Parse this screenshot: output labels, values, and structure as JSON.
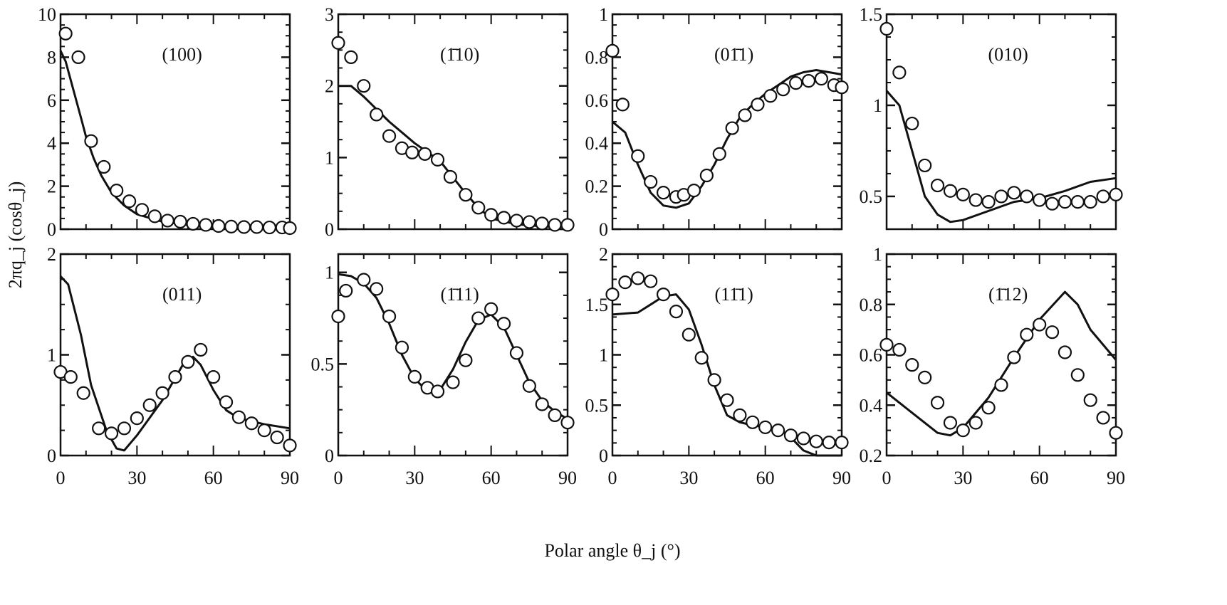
{
  "chart_data": {
    "type": "scatter",
    "ylabel": "2πq_j (cosθ_j)",
    "xlabel": "Polar angle θ_j (°)",
    "xlim": [
      0,
      90
    ],
    "xticks": [
      0,
      30,
      60,
      90
    ],
    "panels": [
      {
        "title": "(100)",
        "ylim": [
          0,
          10
        ],
        "yticks": [
          0,
          2,
          4,
          6,
          8,
          10
        ],
        "points": {
          "x": [
            2,
            7,
            12,
            17,
            22,
            27,
            32,
            37,
            42,
            47,
            52,
            57,
            62,
            67,
            72,
            77,
            82,
            87,
            90
          ],
          "y": [
            9.1,
            8.0,
            4.1,
            2.9,
            1.8,
            1.3,
            0.9,
            0.6,
            0.4,
            0.35,
            0.25,
            0.2,
            0.15,
            0.12,
            0.1,
            0.1,
            0.08,
            0.08,
            0.05
          ]
        },
        "curve": {
          "x": [
            0,
            2,
            5,
            8,
            10,
            13,
            16,
            20,
            25,
            30,
            40,
            50,
            60,
            70,
            80,
            90
          ],
          "y": [
            8.3,
            7.8,
            6.5,
            5.2,
            4.3,
            3.3,
            2.5,
            1.7,
            1.1,
            0.7,
            0.35,
            0.2,
            0.12,
            0.08,
            0.05,
            0.04
          ]
        }
      },
      {
        "title": "(1̄10)",
        "ylim": [
          0,
          3
        ],
        "yticks": [
          0,
          1,
          2,
          3
        ],
        "points": {
          "x": [
            0,
            5,
            10,
            15,
            20,
            25,
            29,
            34,
            39,
            44,
            50,
            55,
            60,
            65,
            70,
            75,
            80,
            85,
            90
          ],
          "y": [
            2.6,
            2.4,
            2.0,
            1.6,
            1.3,
            1.13,
            1.07,
            1.05,
            0.97,
            0.73,
            0.48,
            0.3,
            0.2,
            0.16,
            0.12,
            0.1,
            0.08,
            0.06,
            0.06
          ]
        },
        "curve": {
          "x": [
            0,
            5,
            10,
            20,
            30,
            40,
            50,
            55,
            60,
            70,
            80,
            90
          ],
          "y": [
            2.0,
            2.0,
            1.85,
            1.5,
            1.2,
            0.95,
            0.5,
            0.3,
            0.15,
            0.07,
            0.04,
            0.03
          ]
        }
      },
      {
        "title": "(01̄1)",
        "ylim": [
          0,
          1
        ],
        "yticks": [
          0,
          0.2,
          0.4,
          0.6,
          0.8,
          1
        ],
        "points": {
          "x": [
            0,
            4,
            10,
            15,
            20,
            25,
            28,
            32,
            37,
            42,
            47,
            52,
            57,
            62,
            67,
            72,
            77,
            82,
            87,
            90
          ],
          "y": [
            0.83,
            0.58,
            0.34,
            0.22,
            0.17,
            0.15,
            0.16,
            0.18,
            0.25,
            0.35,
            0.47,
            0.53,
            0.58,
            0.62,
            0.65,
            0.68,
            0.69,
            0.7,
            0.67,
            0.66
          ]
        },
        "curve": {
          "x": [
            0,
            5,
            10,
            15,
            20,
            25,
            30,
            35,
            40,
            45,
            50,
            55,
            60,
            65,
            70,
            75,
            80,
            85,
            90
          ],
          "y": [
            0.5,
            0.45,
            0.3,
            0.17,
            0.11,
            0.1,
            0.12,
            0.2,
            0.3,
            0.42,
            0.52,
            0.58,
            0.63,
            0.67,
            0.71,
            0.73,
            0.74,
            0.73,
            0.72
          ]
        }
      },
      {
        "title": "(010)",
        "ylim": [
          0.32,
          1.5
        ],
        "yticks": [
          0.5,
          1,
          1.5
        ],
        "points": {
          "x": [
            0,
            5,
            10,
            15,
            20,
            25,
            30,
            35,
            40,
            45,
            50,
            55,
            60,
            65,
            70,
            75,
            80,
            85,
            90
          ],
          "y": [
            1.42,
            1.18,
            0.9,
            0.67,
            0.56,
            0.53,
            0.51,
            0.48,
            0.47,
            0.5,
            0.52,
            0.5,
            0.48,
            0.46,
            0.47,
            0.47,
            0.47,
            0.5,
            0.51
          ]
        },
        "curve": {
          "x": [
            0,
            5,
            10,
            15,
            20,
            25,
            30,
            40,
            50,
            60,
            70,
            80,
            90
          ],
          "y": [
            1.08,
            1.0,
            0.75,
            0.5,
            0.4,
            0.36,
            0.37,
            0.42,
            0.47,
            0.49,
            0.53,
            0.58,
            0.6
          ]
        }
      },
      {
        "title": "(011)",
        "ylim": [
          0,
          2
        ],
        "yticks": [
          0,
          1,
          2
        ],
        "points": {
          "x": [
            0,
            4,
            9,
            15,
            20,
            25,
            30,
            35,
            40,
            45,
            50,
            55,
            60,
            65,
            70,
            75,
            80,
            85,
            90
          ],
          "y": [
            0.83,
            0.78,
            0.62,
            0.27,
            0.22,
            0.27,
            0.37,
            0.5,
            0.62,
            0.78,
            0.93,
            1.05,
            0.78,
            0.53,
            0.38,
            0.32,
            0.25,
            0.18,
            0.1
          ]
        },
        "curve": {
          "x": [
            0,
            3,
            8,
            12,
            18,
            22,
            25,
            30,
            40,
            48,
            52,
            55,
            60,
            65,
            70,
            80,
            90
          ],
          "y": [
            1.78,
            1.7,
            1.2,
            0.7,
            0.25,
            0.07,
            0.05,
            0.2,
            0.55,
            0.9,
            0.98,
            0.9,
            0.65,
            0.45,
            0.37,
            0.31,
            0.27
          ]
        }
      },
      {
        "title": "(1̄11)",
        "ylim": [
          0,
          1.1
        ],
        "yticks": [
          0,
          0.5,
          1
        ],
        "points": {
          "x": [
            0,
            3,
            10,
            15,
            20,
            25,
            30,
            35,
            39,
            45,
            50,
            55,
            60,
            65,
            70,
            75,
            80,
            85,
            90
          ],
          "y": [
            0.76,
            0.9,
            0.96,
            0.91,
            0.76,
            0.59,
            0.43,
            0.37,
            0.35,
            0.4,
            0.52,
            0.75,
            0.8,
            0.72,
            0.56,
            0.38,
            0.28,
            0.22,
            0.18
          ]
        },
        "curve": {
          "x": [
            0,
            5,
            10,
            15,
            20,
            25,
            30,
            35,
            40,
            45,
            50,
            55,
            60,
            65,
            70,
            75,
            80,
            85,
            90
          ],
          "y": [
            0.99,
            0.98,
            0.94,
            0.86,
            0.72,
            0.55,
            0.42,
            0.35,
            0.36,
            0.47,
            0.62,
            0.74,
            0.77,
            0.7,
            0.55,
            0.4,
            0.3,
            0.24,
            0.2
          ]
        }
      },
      {
        "title": "(11̄1)",
        "ylim": [
          0,
          2
        ],
        "yticks": [
          0,
          0.5,
          1,
          1.5,
          2
        ],
        "points": {
          "x": [
            0,
            5,
            10,
            15,
            20,
            25,
            30,
            35,
            40,
            45,
            50,
            55,
            60,
            65,
            70,
            75,
            80,
            85,
            90
          ],
          "y": [
            1.6,
            1.72,
            1.76,
            1.73,
            1.6,
            1.43,
            1.2,
            0.97,
            0.75,
            0.55,
            0.4,
            0.33,
            0.28,
            0.25,
            0.2,
            0.17,
            0.14,
            0.13,
            0.13
          ]
        },
        "curve": {
          "x": [
            0,
            10,
            15,
            20,
            25,
            30,
            35,
            40,
            45,
            50,
            55,
            60,
            65,
            70,
            75,
            80,
            90
          ],
          "y": [
            1.4,
            1.42,
            1.5,
            1.58,
            1.6,
            1.45,
            1.1,
            0.7,
            0.4,
            0.33,
            0.3,
            0.28,
            0.27,
            0.18,
            0.05,
            0,
            0
          ]
        }
      },
      {
        "title": "(1̄12)",
        "ylim": [
          0.2,
          1
        ],
        "yticks": [
          0.2,
          0.4,
          0.6,
          0.8,
          1
        ],
        "points": {
          "x": [
            0,
            5,
            10,
            15,
            20,
            25,
            30,
            35,
            40,
            45,
            50,
            55,
            60,
            65,
            70,
            75,
            80,
            85,
            90
          ],
          "y": [
            0.64,
            0.62,
            0.56,
            0.51,
            0.41,
            0.33,
            0.3,
            0.33,
            0.39,
            0.48,
            0.59,
            0.68,
            0.72,
            0.69,
            0.61,
            0.52,
            0.42,
            0.35,
            0.29
          ]
        },
        "curve": {
          "x": [
            0,
            10,
            20,
            25,
            30,
            40,
            50,
            60,
            70,
            75,
            80,
            90
          ],
          "y": [
            0.45,
            0.37,
            0.29,
            0.28,
            0.31,
            0.43,
            0.59,
            0.74,
            0.85,
            0.8,
            0.7,
            0.58
          ]
        }
      }
    ]
  }
}
